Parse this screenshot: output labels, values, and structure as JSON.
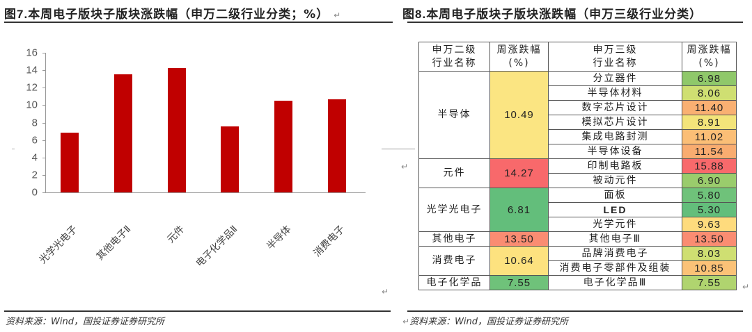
{
  "left_panel": {
    "title_prefix": "图",
    "title_num": "7.",
    "title_text": "本周电子版块子版块涨跌幅（申万二级行业分类；%）",
    "source": "资料来源：Wind，国投证券证券研究所"
  },
  "right_panel": {
    "title_prefix": "图",
    "title_num": "8.",
    "title_text": "本周电子版块子版块涨跌幅（申万三级行业分类）",
    "source": "资料来源：Wind，国投证券证券研究所"
  },
  "return_mark": "↵",
  "table": {
    "headers": {
      "l2_name_line1": "申万二级",
      "l2_name_line2": "行业名称",
      "l2_chg_line1": "周涨跌幅",
      "l2_chg_line2": "(%)",
      "l3_name_line1": "申万三级",
      "l3_name_line2": "行业名称",
      "l3_chg_line1": "周涨跌幅",
      "l3_chg_line2": "(%)"
    },
    "groups": [
      {
        "name": "半导体",
        "value": "10.49",
        "color": "#fbe582",
        "subs": [
          {
            "name": "分立器件",
            "value": "6.98",
            "color": "#8fc86a"
          },
          {
            "name": "半导体材料",
            "value": "8.06",
            "color": "#cfdf72"
          },
          {
            "name": "数字芯片设计",
            "value": "11.40",
            "color": "#f9b072"
          },
          {
            "name": "模拟芯片设计",
            "value": "8.91",
            "color": "#f3e47a"
          },
          {
            "name": "集成电路封测",
            "value": "11.02",
            "color": "#fbbe76"
          },
          {
            "name": "半导体设备",
            "value": "11.54",
            "color": "#f9ac70"
          }
        ]
      },
      {
        "name": "元件",
        "value": "14.27",
        "color": "#f8696b",
        "subs": [
          {
            "name": "印制电路板",
            "value": "15.88",
            "color": "#f8696b"
          },
          {
            "name": "被动元件",
            "value": "6.90",
            "color": "#9acc6c"
          }
        ]
      },
      {
        "name": "光学光电子",
        "value": "6.81",
        "color": "#63be7b",
        "subs": [
          {
            "name": "面板",
            "value": "5.80",
            "color": "#6fc27a"
          },
          {
            "name": "LED",
            "value": "5.30",
            "color": "#63be7b"
          },
          {
            "name": "光学元件",
            "value": "9.63",
            "color": "#fedb7d"
          }
        ]
      },
      {
        "name": "其他电子",
        "value": "13.50",
        "color": "#fa8c72",
        "subs": [
          {
            "name": "其他电子Ⅲ",
            "value": "13.50",
            "color": "#fa8c72"
          }
        ]
      },
      {
        "name": "消费电子",
        "value": "10.64",
        "color": "#fde27f",
        "subs": [
          {
            "name": "品牌消费电子",
            "value": "8.03",
            "color": "#cfdf72"
          },
          {
            "name": "消费电子零部件及组装",
            "value": "10.85",
            "color": "#fbc277"
          }
        ]
      },
      {
        "name": "电子化学品",
        "value": "7.55",
        "color": "#6fc27a",
        "subs": [
          {
            "name": "电子化学品Ⅲ",
            "value": "7.55",
            "color": "#b0d46f"
          }
        ]
      }
    ]
  },
  "chart_data": {
    "type": "bar",
    "title": "本周电子版块子版块涨跌幅（申万二级行业分类；%）",
    "categories": [
      "光学光电子",
      "其他电子Ⅱ",
      "元件",
      "电子化学品Ⅱ",
      "半导体",
      "消费电子"
    ],
    "values": [
      6.81,
      13.5,
      14.27,
      7.55,
      10.49,
      10.64
    ],
    "xlabel": "",
    "ylabel": "",
    "ylim": [
      0,
      16
    ],
    "yticks": [
      0,
      2,
      4,
      6,
      8,
      10,
      12,
      14,
      16
    ],
    "bar_color": "#c00000",
    "grid": false,
    "legend": "none"
  }
}
